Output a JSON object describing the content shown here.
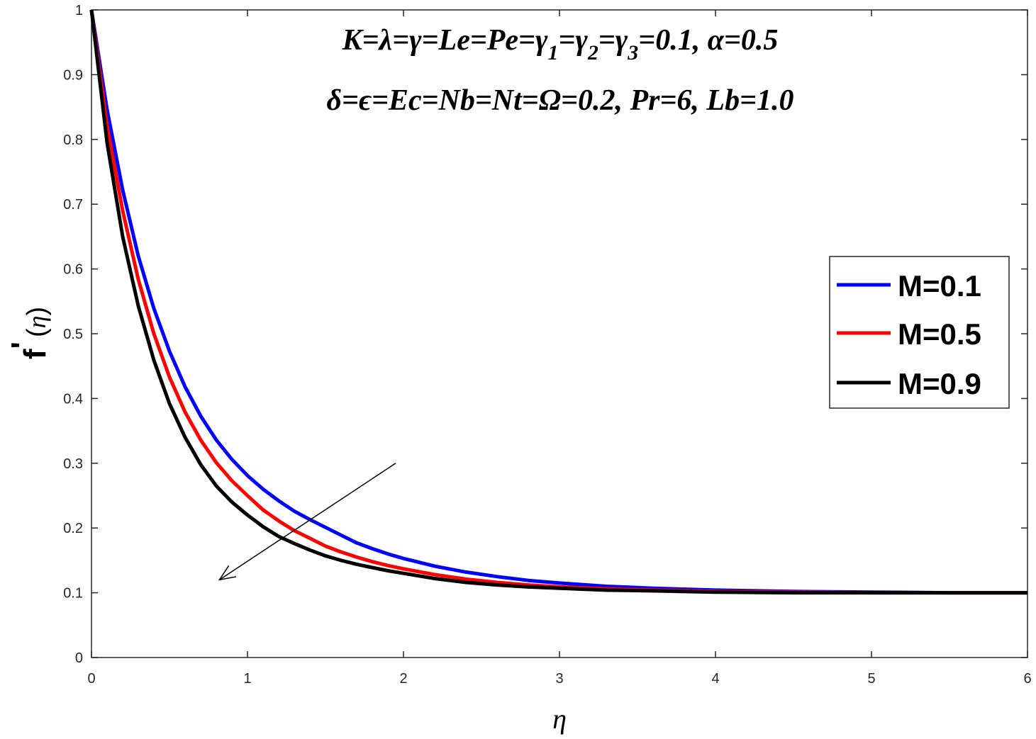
{
  "chart_data": {
    "type": "line",
    "xlabel": "η",
    "ylabel": {
      "main": "f",
      "prime": "'",
      "arg_open": "(",
      "arg": "η",
      "arg_close": ")"
    },
    "xlim": [
      0,
      6
    ],
    "ylim": [
      0,
      1
    ],
    "xticks": [
      0,
      1,
      2,
      3,
      4,
      5,
      6
    ],
    "yticks": [
      0,
      0.1,
      0.2,
      0.3,
      0.4,
      0.5,
      0.6,
      0.7,
      0.8,
      0.9,
      1
    ],
    "xtick_labels": [
      "0",
      "1",
      "2",
      "3",
      "4",
      "5",
      "6"
    ],
    "ytick_labels": [
      "0",
      "0.1",
      "0.2",
      "0.3",
      "0.4",
      "0.5",
      "0.6",
      "0.7",
      "0.8",
      "0.9",
      "1"
    ],
    "grid": false,
    "legend_position": "center-right",
    "annotation": {
      "line1_a": "K=λ=γ=Le=Pe=γ",
      "line1_sub1": "1",
      "line1_b": "=γ",
      "line1_sub2": "2",
      "line1_c": "=γ",
      "line1_sub3": "3",
      "line1_d": "=0.1, α=0.5",
      "line2": "δ=ϵ=Ec=Nb=Nt=Ω=0.2, Pr=6, Lb=1.0"
    },
    "arrow": {
      "from": [
        1.95,
        0.3
      ],
      "to": [
        0.82,
        0.12
      ],
      "meaning": "increasing M"
    },
    "x": [
      0,
      0.1,
      0.2,
      0.3,
      0.4,
      0.5,
      0.6,
      0.7,
      0.8,
      0.9,
      1.0,
      1.1,
      1.2,
      1.3,
      1.4,
      1.5,
      1.6,
      1.7,
      1.8,
      1.9,
      2.0,
      2.2,
      2.4,
      2.6,
      2.8,
      3.0,
      3.3,
      3.6,
      4.0,
      4.5,
      5.0,
      5.5,
      6.0
    ],
    "series": [
      {
        "name": "M=0.1",
        "color": "#0000ff",
        "values": [
          1.0,
          0.846,
          0.722,
          0.62,
          0.539,
          0.473,
          0.418,
          0.373,
          0.336,
          0.306,
          0.281,
          0.26,
          0.242,
          0.226,
          0.213,
          0.201,
          0.189,
          0.177,
          0.168,
          0.16,
          0.153,
          0.141,
          0.132,
          0.125,
          0.119,
          0.115,
          0.11,
          0.107,
          0.104,
          0.102,
          0.101,
          0.1,
          0.1
        ]
      },
      {
        "name": "M=0.5",
        "color": "#ff0000",
        "values": [
          1.0,
          0.821,
          0.69,
          0.584,
          0.5,
          0.433,
          0.379,
          0.336,
          0.301,
          0.273,
          0.25,
          0.228,
          0.211,
          0.196,
          0.184,
          0.172,
          0.163,
          0.155,
          0.148,
          0.142,
          0.137,
          0.128,
          0.121,
          0.116,
          0.112,
          0.109,
          0.106,
          0.104,
          0.102,
          0.101,
          0.1,
          0.1,
          0.1
        ]
      },
      {
        "name": "M=0.9",
        "color": "#000000",
        "values": [
          1.0,
          0.795,
          0.65,
          0.543,
          0.459,
          0.392,
          0.34,
          0.298,
          0.265,
          0.24,
          0.22,
          0.202,
          0.187,
          0.176,
          0.166,
          0.157,
          0.15,
          0.144,
          0.139,
          0.134,
          0.13,
          0.122,
          0.116,
          0.112,
          0.109,
          0.107,
          0.104,
          0.103,
          0.101,
          0.1,
          0.1,
          0.1,
          0.1
        ]
      }
    ]
  }
}
